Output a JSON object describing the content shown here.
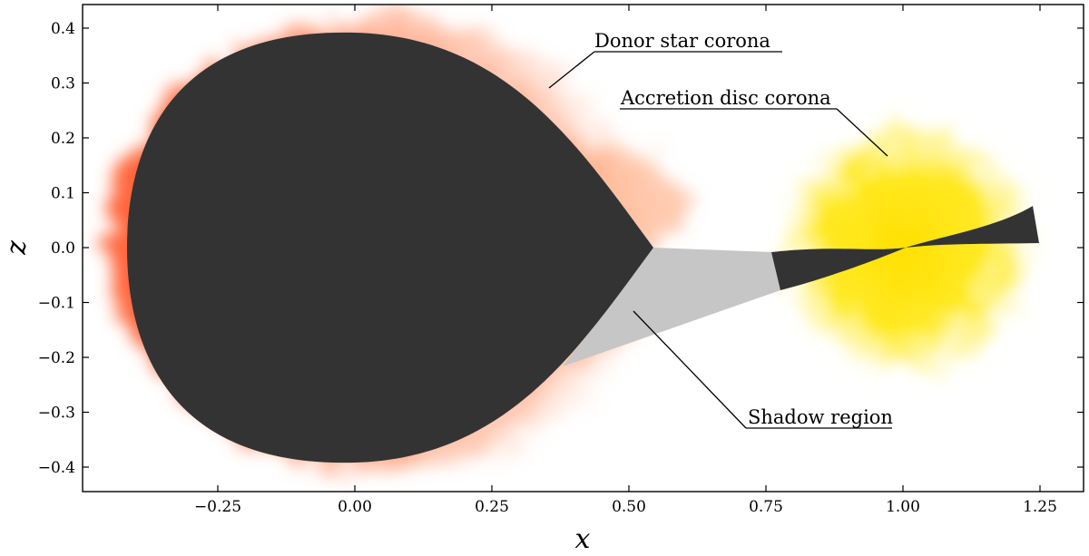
{
  "axes": {
    "xlabel": "x",
    "ylabel": "z",
    "xlim": [
      -0.45,
      1.33
    ],
    "ylim": [
      -0.445,
      0.445
    ],
    "xticks": [
      -0.25,
      0.0,
      0.25,
      0.5,
      0.75,
      1.0,
      1.25
    ],
    "xtick_labels": [
      "−0.25",
      "0.00",
      "0.25",
      "0.50",
      "0.75",
      "1.00",
      "1.25"
    ],
    "yticks": [
      0.4,
      0.3,
      0.2,
      0.1,
      0.0,
      -0.1,
      -0.2,
      -0.3,
      -0.4
    ],
    "ytick_labels": [
      "0.4",
      "0.3",
      "0.2",
      "0.1",
      "0.0",
      "−0.1",
      "−0.2",
      "−0.3",
      "−0.4"
    ]
  },
  "annotations": {
    "donor_corona": "Donor star corona",
    "disc_corona": "Accretion disc corona",
    "shadow": "Shadow region"
  },
  "colors": {
    "donor_star": "#333333",
    "donor_corona": "#ff3b1f",
    "disc_corona": "#ffe400",
    "shadow": "#c6c6c6",
    "disc": "#333333"
  }
}
